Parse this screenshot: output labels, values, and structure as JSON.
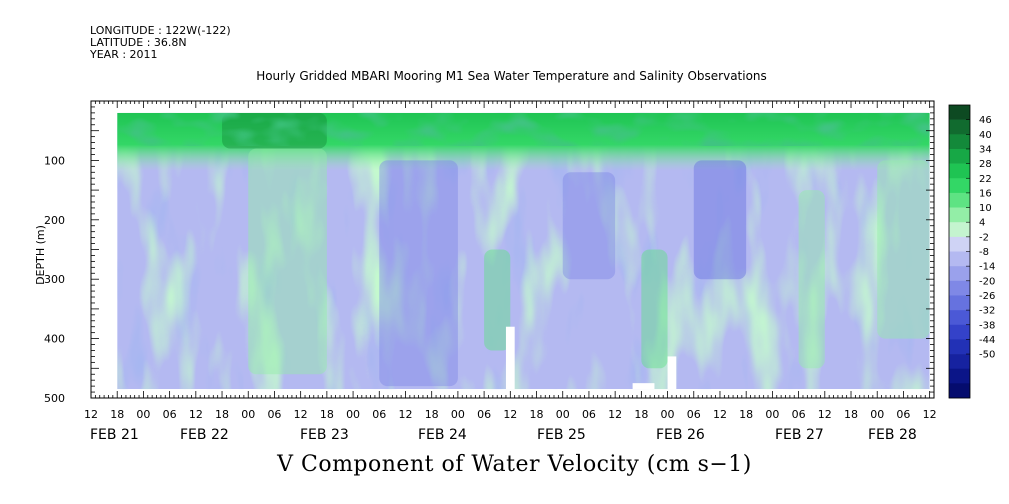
{
  "header": {
    "longitude": "LONGITUDE : 122W(-122)",
    "latitude": "LATITUDE : 36.8N",
    "year": "YEAR : 2011"
  },
  "title": "Hourly Gridded MBARI Mooring M1 Sea Water Temperature and Salinity Observations",
  "bottom_title": "V Component of Water Velocity (cm s−1)",
  "chart_data": {
    "type": "heatmap",
    "title": "Hourly Gridded MBARI Mooring M1 Sea Water Temperature and Salinity Observations",
    "variable": "V Component of Water Velocity (cm s−1)",
    "ylabel": "DEPTH (m)",
    "y_reversed": true,
    "ylim": [
      500,
      0
    ],
    "y_ticks": [
      100,
      200,
      300,
      400,
      500
    ],
    "x_range": [
      "2011-02-20 12:00",
      "2011-02-28 13:00"
    ],
    "x_hour_ticks": [
      "12",
      "18",
      "00",
      "06",
      "12",
      "18",
      "00",
      "06",
      "12",
      "18",
      "00",
      "06",
      "12",
      "18",
      "00",
      "06",
      "12",
      "18",
      "00",
      "06",
      "12",
      "18",
      "00",
      "06",
      "12",
      "18",
      "00",
      "06",
      "12",
      "18",
      "00",
      "06",
      "12"
    ],
    "x_day_labels": [
      "FEB 21",
      "FEB 22",
      "FEB 23",
      "FEB 24",
      "FEB 25",
      "FEB 26",
      "FEB 27",
      "FEB 28"
    ],
    "data_extent": {
      "time_start": "2011-02-20 18:00",
      "time_end": "2011-02-28 12:00",
      "depth_top": 20,
      "depth_bottom": 485
    },
    "colorbar": {
      "labels": [
        "46",
        "40",
        "34",
        "28",
        "22",
        "16",
        "10",
        "4",
        "-2",
        "-8",
        "-14",
        "-20",
        "-26",
        "-32",
        "-38",
        "-44",
        "-50"
      ],
      "colors": [
        "#0d4a22",
        "#116b2f",
        "#13893a",
        "#17a846",
        "#1fc453",
        "#33d766",
        "#5ee383",
        "#93eea7",
        "#c4f4cf",
        "#cfd3f5",
        "#b4b9f1",
        "#9aa1ec",
        "#7f88e6",
        "#6672df",
        "#4b59d6",
        "#3442c9",
        "#2231b6",
        "#1622a0",
        "#0b1588",
        "#050c6e"
      ],
      "min": -50,
      "max": 46,
      "step": 6
    },
    "pattern": [
      {
        "time_start": "2011-02-20 18:00",
        "time_end": "2011-02-28 12:00",
        "depth_top": 20,
        "depth_bottom": 70,
        "v": 30
      },
      {
        "time_start": "2011-02-21 18:00",
        "time_end": "2011-02-22 18:00",
        "depth_top": 20,
        "depth_bottom": 80,
        "v": 40
      },
      {
        "time_start": "2011-02-22 00:00",
        "time_end": "2011-02-22 18:00",
        "depth_top": 80,
        "depth_bottom": 460,
        "v": 10
      },
      {
        "time_start": "2011-02-23 06:00",
        "time_end": "2011-02-24 00:00",
        "depth_top": 100,
        "depth_bottom": 480,
        "v": -20
      },
      {
        "time_start": "2011-02-24 06:00",
        "time_end": "2011-02-24 12:00",
        "depth_top": 250,
        "depth_bottom": 420,
        "v": 16
      },
      {
        "time_start": "2011-02-25 00:00",
        "time_end": "2011-02-25 12:00",
        "depth_top": 120,
        "depth_bottom": 300,
        "v": -22
      },
      {
        "time_start": "2011-02-25 18:00",
        "time_end": "2011-02-26 00:00",
        "depth_top": 250,
        "depth_bottom": 450,
        "v": 14
      },
      {
        "time_start": "2011-02-26 06:00",
        "time_end": "2011-02-26 18:00",
        "depth_top": 100,
        "depth_bottom": 300,
        "v": -28
      },
      {
        "time_start": "2011-02-27 06:00",
        "time_end": "2011-02-27 12:00",
        "depth_top": 150,
        "depth_bottom": 450,
        "v": 10
      },
      {
        "time_start": "2011-02-28 00:00",
        "time_end": "2011-02-28 12:00",
        "depth_top": 100,
        "depth_bottom": 400,
        "v": 8
      }
    ],
    "gaps": [
      {
        "time_start": "2011-02-24 11:00",
        "time_end": "2011-02-24 13:00",
        "depth_top": 380,
        "depth_bottom": 485
      },
      {
        "time_start": "2011-02-25 16:00",
        "time_end": "2011-02-25 21:00",
        "depth_top": 475,
        "depth_bottom": 485
      },
      {
        "time_start": "2011-02-26 00:00",
        "time_end": "2011-02-26 02:00",
        "depth_top": 430,
        "depth_bottom": 485
      }
    ]
  }
}
